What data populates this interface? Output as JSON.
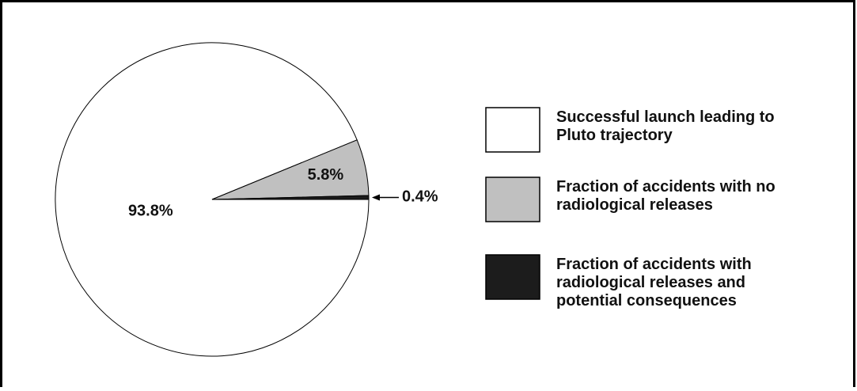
{
  "chart_data": {
    "type": "pie",
    "categories": [
      "Successful launch leading to Pluto trajectory",
      "Fraction of accidents with no radiological releases",
      "Fraction of accidents with radiological releases and potential consequences"
    ],
    "values": [
      93.8,
      5.8,
      0.4
    ],
    "value_labels": [
      "93.8%",
      "5.8%",
      "0.4%"
    ],
    "colors": [
      "#ffffff",
      "#c0c0c0",
      "#1c1c1c"
    ],
    "legend": "right"
  }
}
